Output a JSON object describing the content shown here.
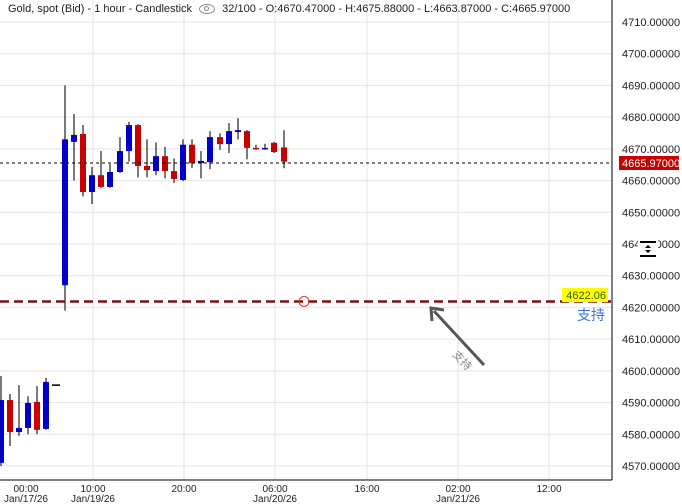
{
  "header": {
    "instrument": "Gold, spot (Bid)",
    "interval": "1 hour",
    "chart_type": "Candlestick",
    "visibility_icon": "eye-icon",
    "count": "32/100",
    "open": "O:4670.47000",
    "high": "H:4675.88000",
    "low": "L:4663.87000",
    "close": "C:4665.97000"
  },
  "colors": {
    "up": "#0000c8",
    "down": "#c80000",
    "wick": "#333333",
    "support_line": "#7a1010",
    "price_tag": "#c80000",
    "support_tag": "#ffff00",
    "support_text": "#3a6fe0"
  },
  "price_axis": {
    "labels": [
      "4710.00000",
      "4700.00000",
      "4690.00000",
      "4680.00000",
      "4670.00000",
      "4660.00000",
      "4650.00000",
      "4640.00000",
      "4630.00000",
      "4620.00000",
      "4610.00000",
      "4600.00000",
      "4590.00000",
      "4580.00000",
      "4570.00000"
    ],
    "current_price": "4665.97000"
  },
  "time_axis": [
    {
      "time": "00:00",
      "date": "Jan/17/26"
    },
    {
      "time": "10:00",
      "date": "Jan/19/26"
    },
    {
      "time": "20:00",
      "date": ""
    },
    {
      "time": "06:00",
      "date": "Jan/20/26"
    },
    {
      "time": "16:00",
      "date": ""
    },
    {
      "time": "02:00",
      "date": "Jan/21/26"
    },
    {
      "time": "12:00",
      "date": ""
    }
  ],
  "support": {
    "price": "4622.06",
    "label": "支持",
    "arrow_label": "支持"
  },
  "chart_data": {
    "type": "candlestick",
    "ylim": [
      4567,
      4716
    ],
    "candles": [
      {
        "o": 4571,
        "h": 4598.4,
        "l": 4570,
        "c": 4590.8
      },
      {
        "o": 4590.8,
        "h": 4592.7,
        "l": 4576.3,
        "c": 4580.7
      },
      {
        "o": 4580.7,
        "h": 4595.5,
        "l": 4579.5,
        "c": 4582
      },
      {
        "o": 4582,
        "h": 4592,
        "l": 4580,
        "c": 4589.9
      },
      {
        "o": 4590.2,
        "h": 4595.2,
        "l": 4580,
        "c": 4581.4
      },
      {
        "o": 4581.7,
        "h": 4597.8,
        "l": 4581.4,
        "c": 4596.5
      },
      {
        "o": 4595.5,
        "h": 4595.5,
        "l": 4595.5,
        "c": 4595.5
      },
      {
        "o": 4627,
        "h": 4690,
        "l": 4619,
        "c": 4673
      },
      {
        "o": 4672.2,
        "h": 4681,
        "l": 4660,
        "c": 4674.4
      },
      {
        "o": 4674.7,
        "h": 4677.5,
        "l": 4655,
        "c": 4656.4
      },
      {
        "o": 4656.4,
        "h": 4664.3,
        "l": 4652.6,
        "c": 4661.7
      },
      {
        "o": 4661.7,
        "h": 4669.3,
        "l": 4657.7,
        "c": 4658
      },
      {
        "o": 4658,
        "h": 4665.2,
        "l": 4657.7,
        "c": 4662.7
      },
      {
        "o": 4662.7,
        "h": 4673.7,
        "l": 4662.4,
        "c": 4669.3
      },
      {
        "o": 4669.3,
        "h": 4678.5,
        "l": 4666,
        "c": 4677.5
      },
      {
        "o": 4677.5,
        "h": 4677.8,
        "l": 4661,
        "c": 4664.6
      },
      {
        "o": 4664.6,
        "h": 4673,
        "l": 4661,
        "c": 4663.3
      },
      {
        "o": 4663,
        "h": 4672,
        "l": 4661.7,
        "c": 4667.7
      },
      {
        "o": 4667.7,
        "h": 4670.6,
        "l": 4660.7,
        "c": 4663
      },
      {
        "o": 4663,
        "h": 4667,
        "l": 4659.2,
        "c": 4660.5
      },
      {
        "o": 4660.2,
        "h": 4673,
        "l": 4659.8,
        "c": 4671.3
      },
      {
        "o": 4671.3,
        "h": 4673,
        "l": 4664,
        "c": 4665.5
      },
      {
        "o": 4665.5,
        "h": 4669.3,
        "l": 4660.7,
        "c": 4666.2
      },
      {
        "o": 4665.8,
        "h": 4675.6,
        "l": 4663.6,
        "c": 4673.7
      },
      {
        "o": 4673.7,
        "h": 4674.9,
        "l": 4669.7,
        "c": 4671.5
      },
      {
        "o": 4671.5,
        "h": 4678.1,
        "l": 4668.7,
        "c": 4675.6
      },
      {
        "o": 4675.3,
        "h": 4679.7,
        "l": 4673,
        "c": 4675.9
      },
      {
        "o": 4675.6,
        "h": 4675.9,
        "l": 4666.7,
        "c": 4670.3
      },
      {
        "o": 4670.3,
        "h": 4671.3,
        "l": 4669.7,
        "c": 4670
      },
      {
        "o": 4670,
        "h": 4671.6,
        "l": 4669.7,
        "c": 4670.3
      },
      {
        "o": 4671.9,
        "h": 4672.2,
        "l": 4668.7,
        "c": 4669
      },
      {
        "o": 4670.47,
        "h": 4675.88,
        "l": 4663.87,
        "c": 4665.97
      }
    ]
  }
}
